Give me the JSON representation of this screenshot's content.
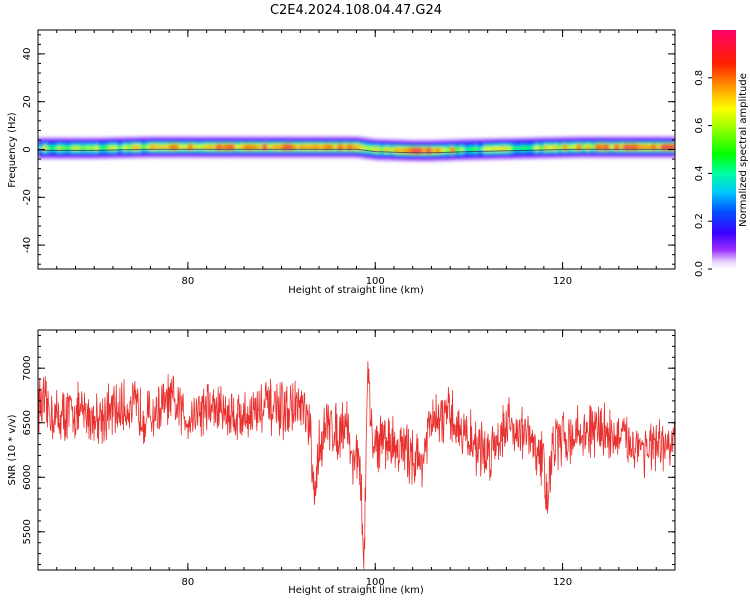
{
  "title": "C2E4.2024.108.04.47.G24",
  "colorbar": {
    "label": "Normalized spectral amplitude",
    "range": [
      0,
      1
    ],
    "ticks": [
      0.0,
      0.2,
      0.4,
      0.6,
      0.8
    ],
    "tick_labels": [
      "0.0",
      "0.2",
      "0.4",
      "0.6",
      "0.8"
    ]
  },
  "chart_data": [
    {
      "type": "heatmap",
      "xlabel": "Height of straight line (km)",
      "ylabel": "Frequency (Hz)",
      "xlim": [
        64,
        132
      ],
      "ylim": [
        -50,
        50
      ],
      "x_ticks": [
        80,
        100,
        120
      ],
      "x_tick_labels": [
        "80",
        "100",
        "120"
      ],
      "y_ticks": [
        -40,
        -20,
        0,
        20,
        40
      ],
      "y_tick_labels": [
        "-40",
        "-20",
        "0",
        "20",
        "40"
      ],
      "band_frequency_hz": 0,
      "band_width_hz": [
        -4,
        4
      ],
      "ridge": {
        "x": [
          64,
          70,
          76,
          82,
          88,
          94,
          98,
          100,
          104,
          106,
          110,
          116,
          122,
          128,
          132
        ],
        "freq": [
          0.5,
          0.5,
          1.0,
          1.0,
          1.0,
          1.0,
          1.0,
          0,
          -0.5,
          -0.5,
          0,
          0.5,
          1.0,
          1.0,
          1.0
        ],
        "amplitude": [
          0.55,
          0.55,
          0.65,
          0.8,
          0.85,
          0.85,
          0.75,
          0.55,
          0.95,
          0.95,
          0.5,
          0.6,
          0.75,
          0.9,
          0.9
        ]
      }
    },
    {
      "type": "line",
      "xlabel": "Height of straight line (km)",
      "ylabel": "SNR (10 * v/v)",
      "xlim": [
        64,
        132
      ],
      "ylim": [
        5150,
        7350
      ],
      "x_ticks": [
        80,
        100,
        120
      ],
      "x_tick_labels": [
        "80",
        "100",
        "120"
      ],
      "y_ticks": [
        5500,
        6000,
        6500,
        7000
      ],
      "y_tick_labels": [
        "5500",
        "6000",
        "6500",
        "7000"
      ],
      "series": [
        {
          "color": "#e8302e",
          "x": [
            64,
            66,
            68,
            70,
            72,
            74,
            76,
            78,
            80,
            82,
            84,
            86,
            88,
            90,
            92,
            93,
            93.5,
            94,
            95,
            96,
            97,
            97.5,
            98,
            98.5,
            98.8,
            99.2,
            99.6,
            100,
            101,
            102,
            104,
            105,
            106,
            108,
            110,
            112,
            114,
            116,
            117,
            118,
            118.3,
            119,
            120,
            122,
            124,
            126,
            128,
            130,
            132
          ],
          "values": [
            6700,
            6550,
            6600,
            6550,
            6600,
            6650,
            6550,
            6700,
            6550,
            6650,
            6600,
            6550,
            6650,
            6600,
            6650,
            6450,
            5750,
            6300,
            6500,
            6400,
            6550,
            6100,
            6300,
            5850,
            5200,
            6950,
            6400,
            6300,
            6350,
            6300,
            6200,
            6150,
            6500,
            6550,
            6350,
            6200,
            6500,
            6400,
            6250,
            6150,
            5800,
            6300,
            6350,
            6400,
            6450,
            6350,
            6300,
            6250,
            6300
          ]
        }
      ]
    }
  ]
}
